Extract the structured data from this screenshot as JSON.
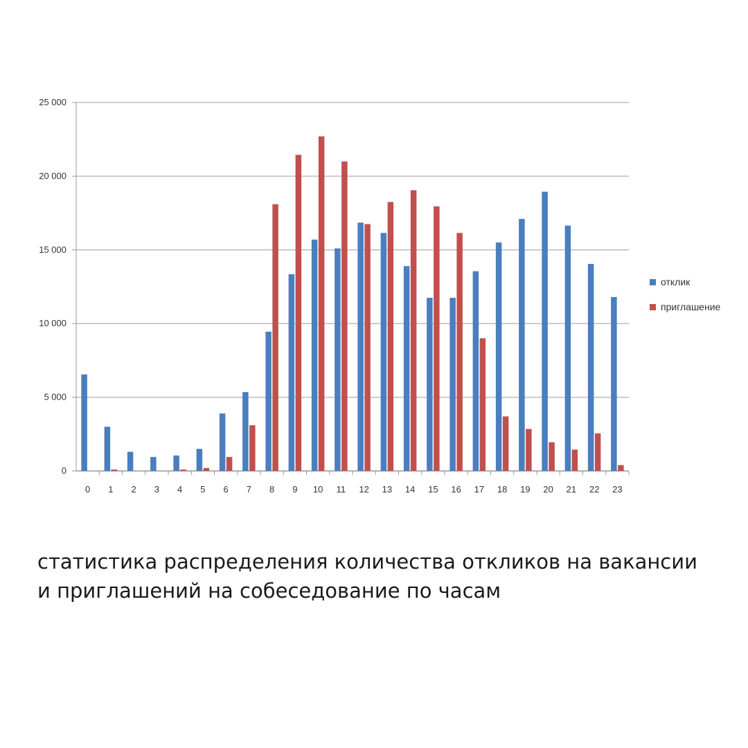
{
  "chart_data": {
    "type": "bar",
    "categories": [
      "0",
      "1",
      "2",
      "3",
      "4",
      "5",
      "6",
      "7",
      "8",
      "9",
      "10",
      "11",
      "12",
      "13",
      "14",
      "15",
      "16",
      "17",
      "18",
      "19",
      "20",
      "21",
      "22",
      "23"
    ],
    "series": [
      {
        "name": "отклик",
        "color": "#4a7ebf",
        "values": [
          6550,
          3000,
          1300,
          950,
          1050,
          1500,
          3900,
          5350,
          9450,
          13350,
          15700,
          15100,
          16850,
          16150,
          13900,
          11750,
          11750,
          13550,
          15500,
          17100,
          18950,
          16650,
          14050,
          11800
        ]
      },
      {
        "name": "приглашение",
        "color": "#c0504d",
        "values": [
          0,
          100,
          0,
          0,
          100,
          200,
          950,
          3100,
          18100,
          21450,
          22700,
          21000,
          16750,
          18250,
          19050,
          17950,
          16150,
          9000,
          3700,
          2850,
          1950,
          1450,
          2550,
          400
        ]
      }
    ],
    "ylim": [
      0,
      25000
    ],
    "yticks": [
      0,
      5000,
      10000,
      15000,
      20000,
      25000
    ],
    "ytick_labels": [
      "0",
      "5 000",
      "10 000",
      "15 000",
      "20 000",
      "25 000"
    ],
    "grid": true,
    "legend_position": "right"
  },
  "caption": "статистика распределения количества откликов на вакансии и приглашений на собеседование по часам"
}
